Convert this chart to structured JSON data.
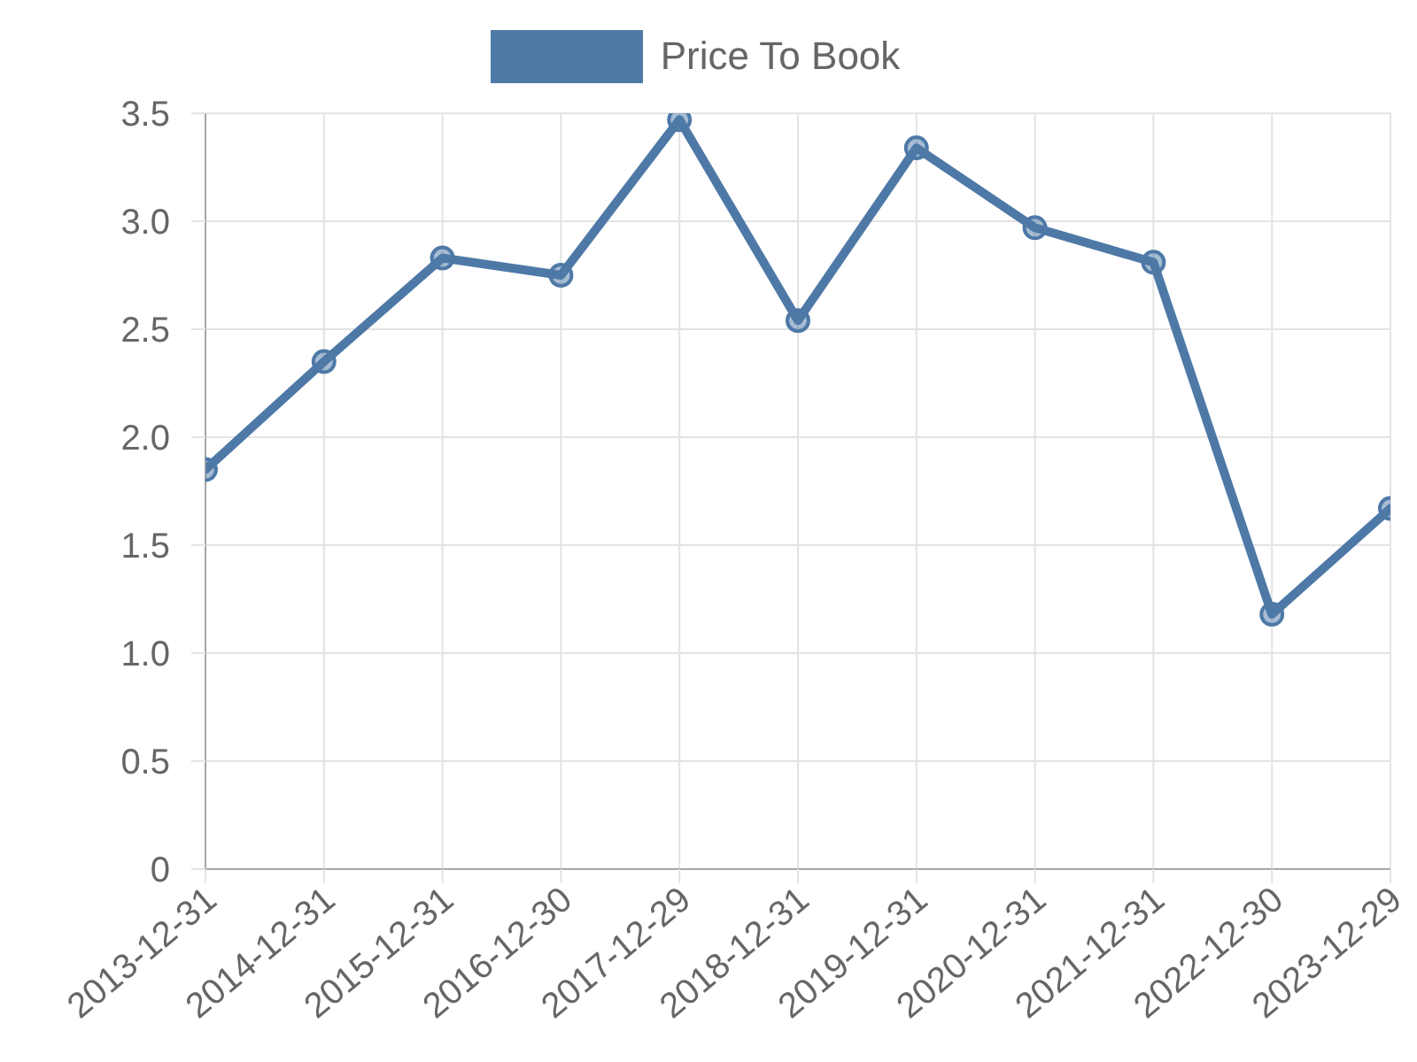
{
  "chart_data": {
    "type": "line",
    "categories": [
      "2013-12-31",
      "2014-12-31",
      "2015-12-31",
      "2016-12-30",
      "2017-12-29",
      "2018-12-31",
      "2019-12-31",
      "2020-12-31",
      "2021-12-31",
      "2022-12-30",
      "2023-12-29"
    ],
    "series": [
      {
        "name": "Price To Book",
        "color": "#4e79a7",
        "values": [
          1.85,
          2.35,
          2.83,
          2.75,
          3.47,
          2.54,
          3.34,
          2.97,
          2.81,
          1.18,
          1.67
        ]
      }
    ],
    "ylim": [
      0,
      3.5
    ],
    "yticks": [
      0,
      0.5,
      {
        "value": 1,
        "label": "1.0"
      },
      1.5,
      {
        "value": 2,
        "label": "2.0"
      },
      2.5,
      {
        "value": 3,
        "label": "3.0"
      },
      3.5
    ],
    "grid": true,
    "legend": "top",
    "marker": "circle",
    "line_style": "solid"
  }
}
